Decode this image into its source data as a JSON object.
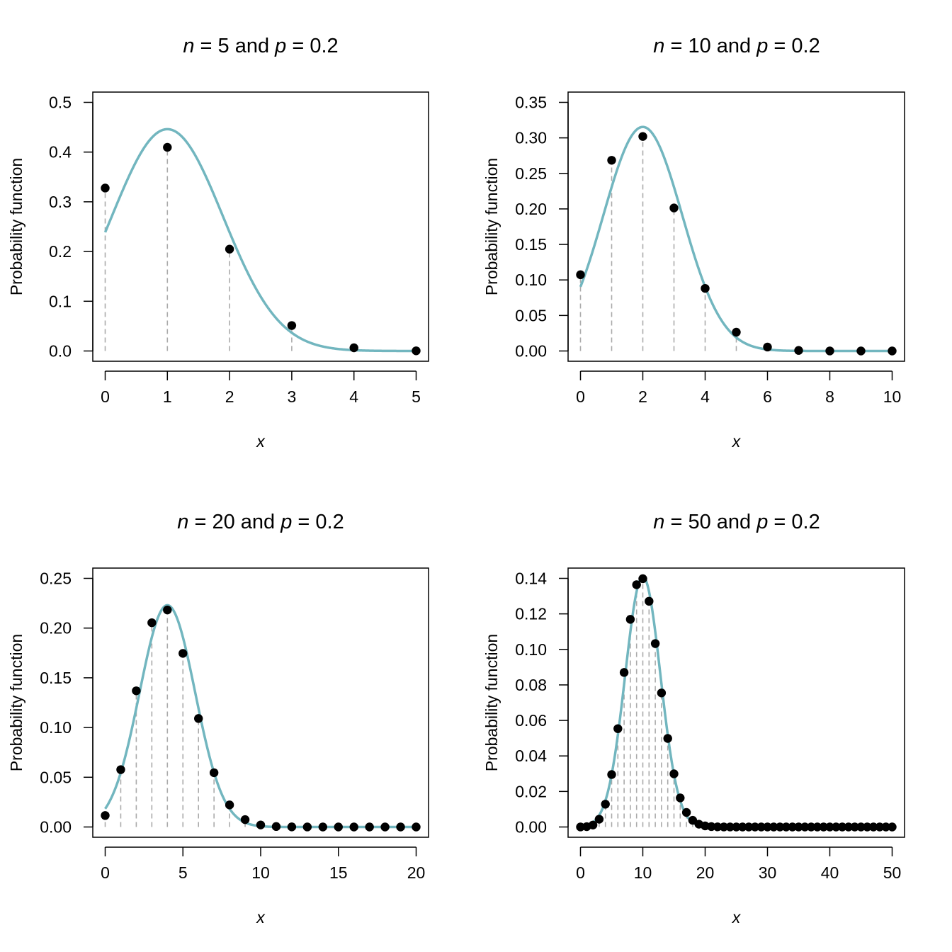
{
  "colors": {
    "curve": "#72B6BF",
    "points": "#000000",
    "stems": "#AAAAAA",
    "axes": "#000000",
    "background": "#FFFFFF"
  },
  "chart_data": [
    {
      "type": "scatter",
      "title": {
        "n_symbol": "n",
        "n_value": "= 5",
        "connector": "and",
        "p_symbol": "p",
        "p_value": "= 0.2"
      },
      "xlabel": "x",
      "ylabel": "Probability function",
      "xlim": [
        0,
        5
      ],
      "ylim": [
        0,
        0.5
      ],
      "x_ticks": [
        "0",
        "1",
        "2",
        "3",
        "4",
        "5"
      ],
      "y_ticks": [
        "0.0",
        "0.1",
        "0.2",
        "0.3",
        "0.4",
        "0.5"
      ],
      "grid": false,
      "legend": "none",
      "n": 5,
      "p": 0.2,
      "series": [
        {
          "kind": "points_with_stems",
          "x": [
            0,
            1,
            2,
            3,
            4,
            5
          ],
          "y": [
            0.32768,
            0.4096,
            0.2048,
            0.0512,
            0.0064,
            0.00032
          ]
        },
        {
          "kind": "normal_curve",
          "mean": 1.0,
          "sd": 0.8944,
          "x_range": [
            0,
            5
          ]
        }
      ]
    },
    {
      "type": "scatter",
      "title": {
        "n_symbol": "n",
        "n_value": "= 10",
        "connector": "and",
        "p_symbol": "p",
        "p_value": "= 0.2"
      },
      "xlabel": "x",
      "ylabel": "Probability function",
      "xlim": [
        0,
        10
      ],
      "ylim": [
        0,
        0.35
      ],
      "x_ticks": [
        "0",
        "2",
        "4",
        "6",
        "8",
        "10"
      ],
      "y_ticks": [
        "0.00",
        "0.05",
        "0.10",
        "0.15",
        "0.20",
        "0.25",
        "0.30",
        "0.35"
      ],
      "grid": false,
      "legend": "none",
      "n": 10,
      "p": 0.2,
      "series": [
        {
          "kind": "points_with_stems",
          "x": [
            0,
            1,
            2,
            3,
            4,
            5,
            6,
            7,
            8,
            9,
            10
          ],
          "y": [
            0.10737,
            0.26844,
            0.30199,
            0.20133,
            0.08808,
            0.02642,
            0.00551,
            0.00079,
            7e-05,
            0.0,
            0.0
          ]
        },
        {
          "kind": "normal_curve",
          "mean": 2.0,
          "sd": 1.2649,
          "x_range": [
            0,
            10
          ]
        }
      ]
    },
    {
      "type": "scatter",
      "title": {
        "n_symbol": "n",
        "n_value": "= 20",
        "connector": "and",
        "p_symbol": "p",
        "p_value": "= 0.2"
      },
      "xlabel": "x",
      "ylabel": "Probability function",
      "xlim": [
        0,
        20
      ],
      "ylim": [
        0,
        0.25
      ],
      "x_ticks": [
        "0",
        "5",
        "10",
        "15",
        "20"
      ],
      "y_ticks": [
        "0.00",
        "0.05",
        "0.10",
        "0.15",
        "0.20",
        "0.25"
      ],
      "grid": false,
      "legend": "none",
      "n": 20,
      "p": 0.2,
      "series": [
        {
          "kind": "points_with_stems",
          "x": [
            0,
            1,
            2,
            3,
            4,
            5,
            6,
            7,
            8,
            9,
            10,
            11,
            12,
            13,
            14,
            15,
            16,
            17,
            18,
            19,
            20
          ],
          "y": [
            0.01153,
            0.05765,
            0.13691,
            0.20536,
            0.2182,
            0.17456,
            0.1091,
            0.05455,
            0.02216,
            0.00739,
            0.00203,
            0.00046,
            9e-05,
            1e-05,
            0.0,
            0.0,
            0.0,
            0.0,
            0.0,
            0.0,
            0.0
          ]
        },
        {
          "kind": "normal_curve",
          "mean": 4.0,
          "sd": 1.7889,
          "x_range": [
            0,
            20
          ]
        }
      ]
    },
    {
      "type": "scatter",
      "title": {
        "n_symbol": "n",
        "n_value": "= 50",
        "connector": "and",
        "p_symbol": "p",
        "p_value": "= 0.2"
      },
      "xlabel": "x",
      "ylabel": "Probability function",
      "xlim": [
        0,
        50
      ],
      "ylim": [
        0,
        0.14
      ],
      "x_ticks": [
        "0",
        "10",
        "20",
        "30",
        "40",
        "50"
      ],
      "y_ticks": [
        "0.00",
        "0.02",
        "0.04",
        "0.06",
        "0.08",
        "0.10",
        "0.12",
        "0.14"
      ],
      "grid": false,
      "legend": "none",
      "n": 50,
      "p": 0.2,
      "series": [
        {
          "kind": "points_with_stems",
          "x": [
            0,
            1,
            2,
            3,
            4,
            5,
            6,
            7,
            8,
            9,
            10,
            11,
            12,
            13,
            14,
            15,
            16,
            17,
            18,
            19,
            20,
            21,
            22,
            23,
            24,
            25,
            26,
            27,
            28,
            29,
            30,
            31,
            32,
            33,
            34,
            35,
            36,
            37,
            38,
            39,
            40,
            41,
            42,
            43,
            44,
            45,
            46,
            47,
            48,
            49,
            50
          ],
          "y": [
            1e-05,
            0.00018,
            0.00109,
            0.00437,
            0.01284,
            0.02953,
            0.05537,
            0.08701,
            0.11692,
            0.13641,
            0.13982,
            0.12711,
            0.10328,
            0.07547,
            0.04986,
            0.02992,
            0.01636,
            0.00818,
            0.00375,
            0.00158,
            0.00061,
            0.00022,
            7e-05,
            2e-05,
            1e-05,
            0.0,
            0.0,
            0.0,
            0.0,
            0.0,
            0.0,
            0.0,
            0.0,
            0.0,
            0.0,
            0.0,
            0.0,
            0.0,
            0.0,
            0.0,
            0.0,
            0.0,
            0.0,
            0.0,
            0.0,
            0.0,
            0.0,
            0.0,
            0.0,
            0.0,
            0.0
          ]
        },
        {
          "kind": "normal_curve",
          "mean": 10.0,
          "sd": 2.8284,
          "x_range": [
            0,
            50
          ]
        }
      ]
    }
  ]
}
